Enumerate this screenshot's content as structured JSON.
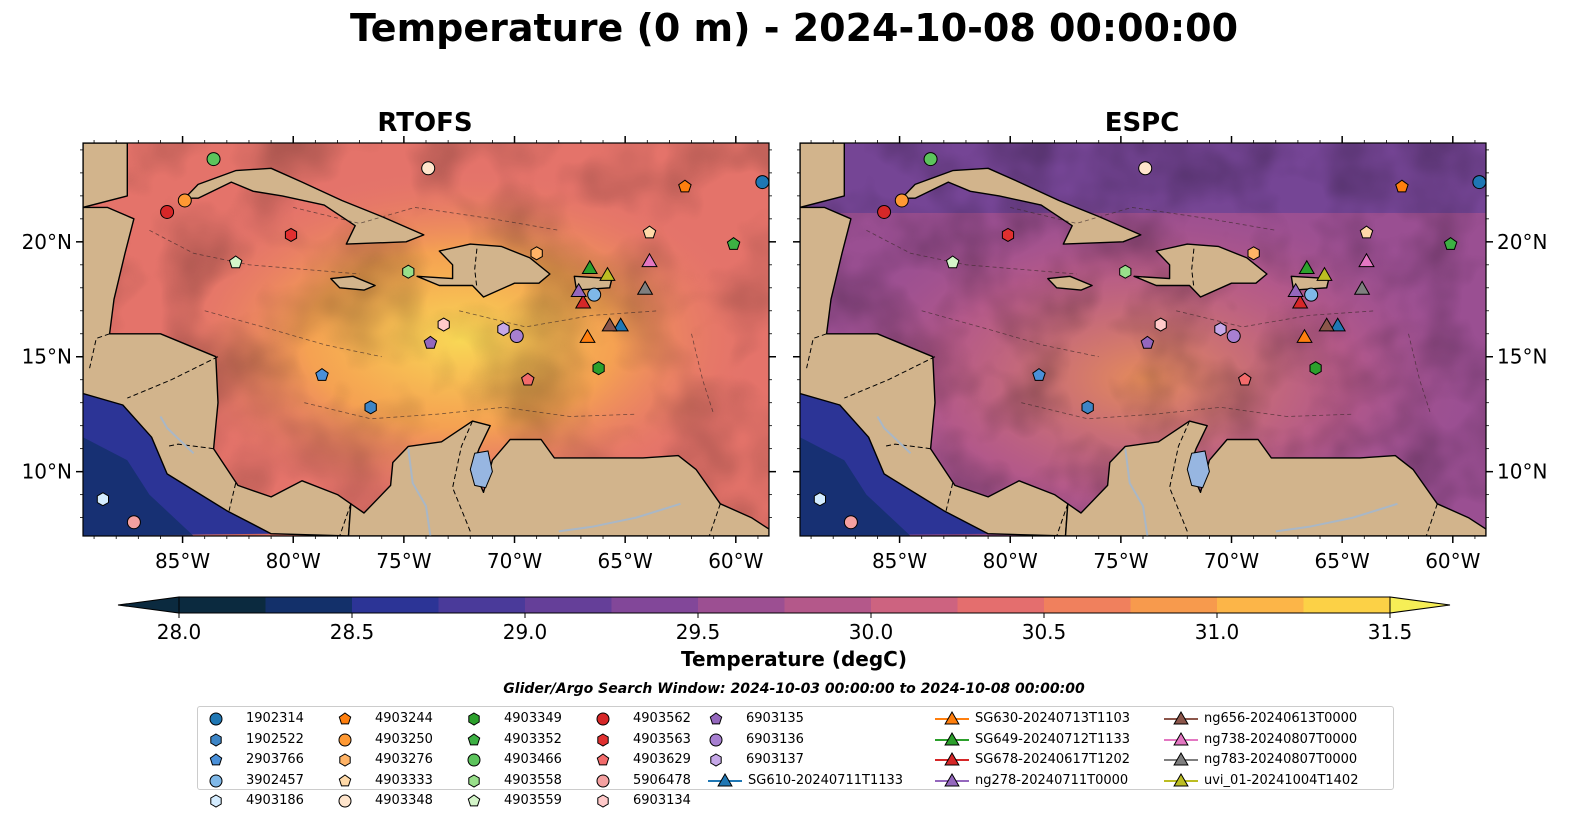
{
  "title": "Temperature (0 m) - 2024-10-08 00:00:00",
  "panels": [
    {
      "title": "RTOFS",
      "variant": "warm"
    },
    {
      "title": "ESPC",
      "variant": "cool"
    }
  ],
  "map": {
    "lon_range": [
      -89.5,
      -58.5
    ],
    "lat_range": [
      7.2,
      24.3
    ],
    "lon_ticks": [
      {
        "v": -85,
        "label": "85°W"
      },
      {
        "v": -80,
        "label": "80°W"
      },
      {
        "v": -75,
        "label": "75°W"
      },
      {
        "v": -70,
        "label": "70°W"
      },
      {
        "v": -65,
        "label": "65°W"
      },
      {
        "v": -60,
        "label": "60°W"
      }
    ],
    "lat_ticks": [
      {
        "v": 10,
        "label": "10°N"
      },
      {
        "v": 15,
        "label": "15°N"
      },
      {
        "v": 20,
        "label": "20°N"
      }
    ],
    "land_color": "#d2b48c",
    "lake_color": "#97b6e1"
  },
  "colorbar": {
    "label": "Temperature (degC)",
    "min": 28.0,
    "max": 31.5,
    "ticks": [
      {
        "v": 28.0,
        "label": "28.0"
      },
      {
        "v": 28.5,
        "label": "28.5"
      },
      {
        "v": 29.0,
        "label": "29.0"
      },
      {
        "v": 29.5,
        "label": "29.5"
      },
      {
        "v": 30.0,
        "label": "30.0"
      },
      {
        "v": 30.5,
        "label": "30.5"
      },
      {
        "v": 31.0,
        "label": "31.0"
      },
      {
        "v": 31.5,
        "label": "31.5"
      }
    ],
    "colors": [
      "#0b2a3f",
      "#13306a",
      "#2c3496",
      "#4a3a9a",
      "#653f99",
      "#824799",
      "#9c4f92",
      "#b4588a",
      "#cd6380",
      "#e46e6e",
      "#f0805d",
      "#f79a4d",
      "#fcb548",
      "#fcd146",
      "#f6ee56"
    ]
  },
  "legend": {
    "title": "Glider/Argo Search Window: 2024-10-03 00:00:00 to 2024-10-08 00:00:00",
    "items": [
      {
        "label": "1902314",
        "marker": "circle",
        "color": "#1f77b4",
        "lon": -58.8,
        "lat": 22.6
      },
      {
        "label": "1902522",
        "marker": "hexagon",
        "color": "#3d85c6",
        "lon": -76.5,
        "lat": 12.8
      },
      {
        "label": "2903766",
        "marker": "pentagon",
        "color": "#4a90d9",
        "lon": -78.7,
        "lat": 14.2
      },
      {
        "label": "3902457",
        "marker": "circle",
        "color": "#7fb8e8",
        "lon": -66.4,
        "lat": 17.7
      },
      {
        "label": "4903186",
        "marker": "hexagon",
        "color": "#d4ecff",
        "lon": -88.6,
        "lat": 8.8
      },
      {
        "label": "4903244",
        "marker": "pentagon",
        "color": "#ff7f0e",
        "lon": -62.3,
        "lat": 22.4
      },
      {
        "label": "4903250",
        "marker": "circle",
        "color": "#ff9933",
        "lon": -84.9,
        "lat": 21.8
      },
      {
        "label": "4903276",
        "marker": "hexagon",
        "color": "#ffb366",
        "lon": -69.0,
        "lat": 19.5
      },
      {
        "label": "4903333",
        "marker": "pentagon",
        "color": "#ffd9a8",
        "lon": -63.9,
        "lat": 20.4
      },
      {
        "label": "4903348",
        "marker": "circle",
        "color": "#ffe5cc",
        "lon": -73.9,
        "lat": 23.2
      },
      {
        "label": "4903349",
        "marker": "hexagon",
        "color": "#2ca02c",
        "lon": -66.2,
        "lat": 14.5
      },
      {
        "label": "4903352",
        "marker": "pentagon",
        "color": "#3cb043",
        "lon": -60.1,
        "lat": 19.9
      },
      {
        "label": "4903466",
        "marker": "circle",
        "color": "#5cc45c",
        "lon": -83.6,
        "lat": 23.6
      },
      {
        "label": "4903558",
        "marker": "hexagon",
        "color": "#98df8a",
        "lon": -74.8,
        "lat": 18.7
      },
      {
        "label": "4903559",
        "marker": "pentagon",
        "color": "#d4f5c9",
        "lon": -82.6,
        "lat": 19.1
      },
      {
        "label": "4903562",
        "marker": "circle",
        "color": "#d62728",
        "lon": -85.7,
        "lat": 21.3
      },
      {
        "label": "4903563",
        "marker": "hexagon",
        "color": "#e03030",
        "lon": -80.1,
        "lat": 20.3
      },
      {
        "label": "4903629",
        "marker": "pentagon",
        "color": "#f26b6b",
        "lon": -69.4,
        "lat": 14.0
      },
      {
        "label": "5906478",
        "marker": "circle",
        "color": "#f4a0a0",
        "lon": -87.2,
        "lat": 7.8
      },
      {
        "label": "6903134",
        "marker": "hexagon",
        "color": "#ffc9c9",
        "lon": -73.2,
        "lat": 16.4
      },
      {
        "label": "6903135",
        "marker": "pentagon",
        "color": "#9467bd",
        "lon": -73.8,
        "lat": 15.6
      },
      {
        "label": "6903136",
        "marker": "circle",
        "color": "#a77fd1",
        "lon": -69.9,
        "lat": 15.9
      },
      {
        "label": "6903137",
        "marker": "hexagon",
        "color": "#c6a8e8",
        "lon": -70.5,
        "lat": 16.2
      }
    ],
    "gliders": [
      {
        "label": "SG610-20240711T1133",
        "color": "#1f77b4",
        "lon": -65.2,
        "lat": 16.4
      },
      {
        "label": "SG630-20240713T1103",
        "color": "#ff7f0e",
        "lon": -66.7,
        "lat": 15.9
      },
      {
        "label": "SG649-20240712T1133",
        "color": "#2ca02c",
        "lon": -66.6,
        "lat": 18.9
      },
      {
        "label": "SG678-20240617T1202",
        "color": "#d62728",
        "lon": -66.9,
        "lat": 17.4
      },
      {
        "label": "ng278-20240711T0000",
        "color": "#9467bd",
        "lon": -67.1,
        "lat": 17.9
      },
      {
        "label": "ng656-20240613T0000",
        "color": "#8c564b",
        "lon": -65.7,
        "lat": 16.4
      },
      {
        "label": "ng738-20240807T0000",
        "color": "#e377c2",
        "lon": -63.9,
        "lat": 19.2
      },
      {
        "label": "ng783-20240807T0000",
        "color": "#7f7f7f",
        "lon": -64.1,
        "lat": 18.0
      },
      {
        "label": "uvi_01-20241004T1402",
        "color": "#bcbd22",
        "lon": -65.8,
        "lat": 18.6
      }
    ]
  }
}
